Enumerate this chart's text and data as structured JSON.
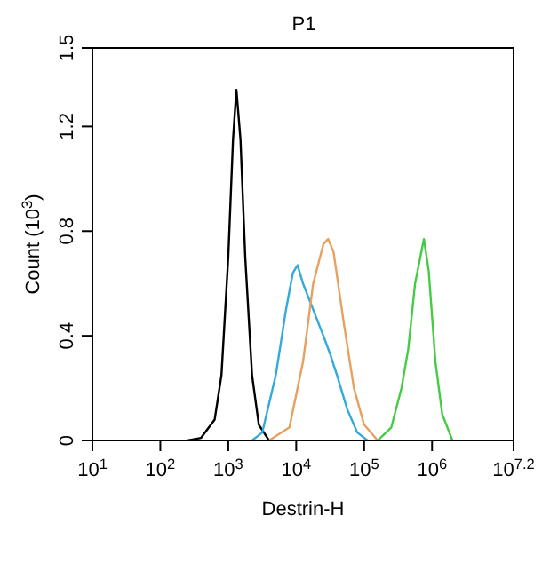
{
  "chart_data": {
    "type": "line",
    "title": "P1",
    "xlabel": "Destrin-H",
    "ylabel": "Count (10$^{3}$)",
    "log": "x",
    "xlim": [
      10,
      15848932
    ],
    "xticks": [
      {
        "value": 10,
        "label": "10$^{1}$"
      },
      {
        "value": 100,
        "label": "10$^{2}$"
      },
      {
        "value": 1000,
        "label": "10$^{3}$"
      },
      {
        "value": 10000,
        "label": "10$^{4}$"
      },
      {
        "value": 100000,
        "label": "10$^{5}$"
      },
      {
        "value": 1000000,
        "label": "10$^{6}$"
      },
      {
        "value": 15848932,
        "label": "10$^{7.2}$"
      }
    ],
    "ylim": [
      0,
      1.5
    ],
    "yticks": [
      0,
      0.4,
      0.8,
      1.2,
      1.5
    ],
    "legend": false,
    "marker": "none",
    "line_style": "solid",
    "series": [
      {
        "color": "#000000",
        "x": [
          251,
          398,
          631,
          794,
          1000,
          1175,
          1318,
          1514,
          1778,
          2239,
          2818,
          3981
        ],
        "values": [
          0,
          0.01,
          0.08,
          0.25,
          0.7,
          1.15,
          1.34,
          1.15,
          0.7,
          0.25,
          0.06,
          0
        ]
      },
      {
        "color": "#33aadd",
        "x": [
          2239,
          3162,
          5012,
          7079,
          8913,
          10471,
          12589,
          17783,
          25119,
          31623,
          39811,
          56234,
          79433,
          112202
        ],
        "values": [
          0,
          0.03,
          0.25,
          0.5,
          0.64,
          0.67,
          0.6,
          0.5,
          0.4,
          0.33,
          0.25,
          0.12,
          0.03,
          0
        ]
      },
      {
        "color": "#e8a060",
        "x": [
          3981,
          7943,
          12589,
          17783,
          25119,
          29512,
          35481,
          50119,
          70795,
          100000,
          158489
        ],
        "values": [
          0,
          0.05,
          0.3,
          0.6,
          0.75,
          0.77,
          0.72,
          0.45,
          0.2,
          0.06,
          0
        ]
      },
      {
        "color": "#44cc44",
        "x": [
          158489,
          251189,
          354813,
          446684,
          562341,
          758578,
          891251,
          1122018,
          1412538,
          1995262
        ],
        "values": [
          0,
          0.05,
          0.2,
          0.35,
          0.6,
          0.77,
          0.65,
          0.3,
          0.1,
          0
        ]
      }
    ]
  }
}
